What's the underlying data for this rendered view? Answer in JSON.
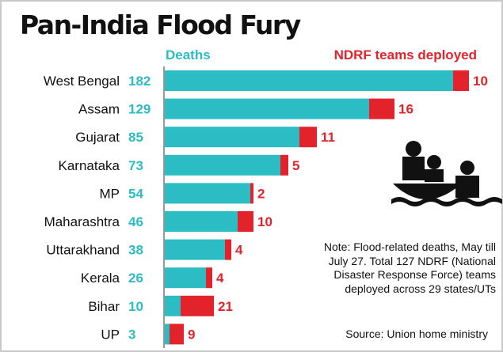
{
  "title": "Pan-India Flood Fury",
  "legend": {
    "deaths": "Deaths",
    "ndrf": "NDRF teams deployed"
  },
  "colors": {
    "deaths": "#2bbcc4",
    "ndrf": "#e3232b",
    "frame": "#c9c9c9"
  },
  "note": "Note: Flood-related deaths, May till July 27. Total 127 NDRF (National Disaster Response Force) teams deployed across 29 states/UTs",
  "source": "Source: Union home ministry",
  "icon": "people-in-rescue-boat-on-water-icon",
  "chart_data": {
    "type": "bar",
    "orientation": "horizontal",
    "stacked": true,
    "categories": [
      "West Bengal",
      "Assam",
      "Gujarat",
      "Karnataka",
      "MP",
      "Maharashtra",
      "Uttarakhand",
      "Kerala",
      "Bihar",
      "UP"
    ],
    "series": [
      {
        "name": "Deaths",
        "values": [
          182,
          129,
          85,
          73,
          54,
          46,
          38,
          26,
          10,
          3
        ]
      },
      {
        "name": "NDRF teams deployed",
        "values": [
          10,
          16,
          11,
          5,
          2,
          10,
          4,
          4,
          21,
          9
        ]
      }
    ],
    "title": "Pan-India Flood Fury",
    "grid": false,
    "legend": "top"
  }
}
